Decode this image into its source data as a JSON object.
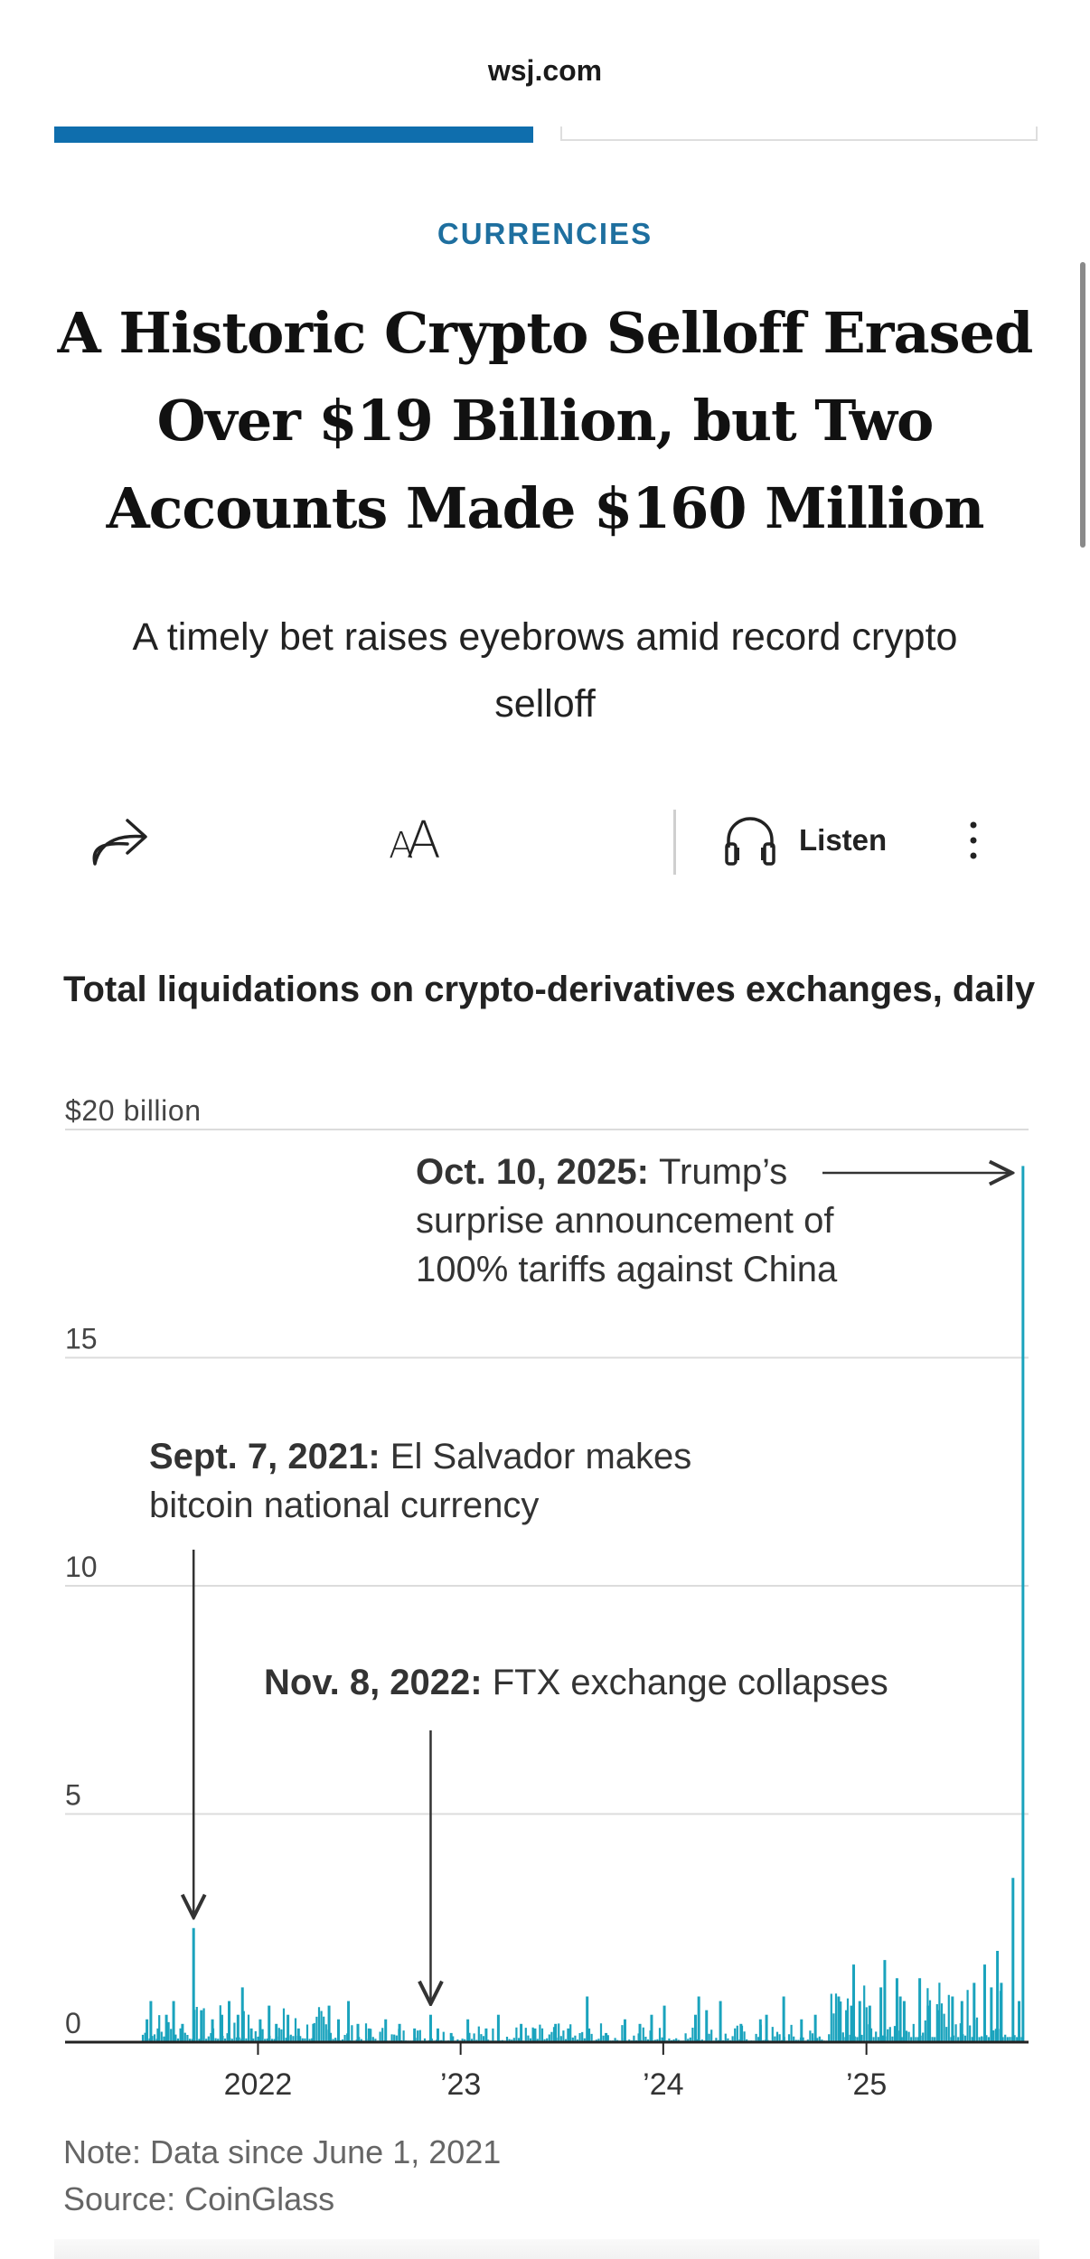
{
  "browser": {
    "url": "wsj.com"
  },
  "reading_progress": 0.5,
  "article": {
    "section": "CURRENCIES",
    "headline": "A Historic Crypto Selloff Erased Over $19 Billion, but Two Accounts Made $160 Million",
    "dek": "A timely bet raises eyebrows amid record crypto selloff"
  },
  "toolbar": {
    "share_icon": "share-arrow-icon",
    "text_size_icon": "text-size-icon",
    "listen_icon": "headphones-icon",
    "listen_label": "Listen",
    "more_icon": "more-vertical-icon"
  },
  "colors": {
    "accent": "#0f6ead",
    "section": "#1e6f9f",
    "series": "#1aa3bd"
  },
  "chart_data": {
    "type": "bar",
    "title": "Total liquidations on crypto-derivatives exchanges, daily",
    "ylabel": "",
    "ylim": [
      0,
      20
    ],
    "y_ticks": [
      {
        "value": 20,
        "label": "$20 billion"
      },
      {
        "value": 15,
        "label": "15"
      },
      {
        "value": 10,
        "label": "10"
      },
      {
        "value": 5,
        "label": "5"
      },
      {
        "value": 0,
        "label": "0"
      }
    ],
    "x_ticks": [
      {
        "date": "2022-01-01",
        "label": "2022"
      },
      {
        "date": "2023-01-01",
        "label": "’23"
      },
      {
        "date": "2024-01-01",
        "label": "’24"
      },
      {
        "date": "2025-01-01",
        "label": "’25"
      }
    ],
    "x_range": [
      "2021-06-01",
      "2025-10-20"
    ],
    "grid": true,
    "series": [
      {
        "points": [
          [
            "2021-06-15",
            0.5
          ],
          [
            "2021-06-22",
            0.9
          ],
          [
            "2021-07-05",
            0.3
          ],
          [
            "2021-07-20",
            0.6
          ],
          [
            "2021-08-02",
            0.9
          ],
          [
            "2021-08-18",
            0.4
          ],
          [
            "2021-09-07",
            2.5
          ],
          [
            "2021-09-21",
            0.7
          ],
          [
            "2021-10-11",
            0.5
          ],
          [
            "2021-10-28",
            0.6
          ],
          [
            "2021-11-10",
            0.9
          ],
          [
            "2021-11-26",
            0.6
          ],
          [
            "2021-12-04",
            1.2
          ],
          [
            "2021-12-20",
            0.3
          ],
          [
            "2022-01-05",
            0.5
          ],
          [
            "2022-01-21",
            0.8
          ],
          [
            "2022-02-03",
            0.4
          ],
          [
            "2022-02-24",
            0.6
          ],
          [
            "2022-03-15",
            0.3
          ],
          [
            "2022-04-11",
            0.4
          ],
          [
            "2022-05-09",
            0.8
          ],
          [
            "2022-05-26",
            0.5
          ],
          [
            "2022-06-13",
            0.9
          ],
          [
            "2022-06-30",
            0.4
          ],
          [
            "2022-07-20",
            0.3
          ],
          [
            "2022-08-19",
            0.5
          ],
          [
            "2022-09-13",
            0.4
          ],
          [
            "2022-10-10",
            0.3
          ],
          [
            "2022-11-08",
            0.6
          ],
          [
            "2022-11-21",
            0.3
          ],
          [
            "2022-12-15",
            0.2
          ],
          [
            "2023-01-14",
            0.5
          ],
          [
            "2023-02-16",
            0.3
          ],
          [
            "2023-03-10",
            0.6
          ],
          [
            "2023-04-20",
            0.4
          ],
          [
            "2023-05-15",
            0.3
          ],
          [
            "2023-06-21",
            0.4
          ],
          [
            "2023-07-14",
            0.3
          ],
          [
            "2023-08-17",
            1.0
          ],
          [
            "2023-09-20",
            0.2
          ],
          [
            "2023-10-24",
            0.5
          ],
          [
            "2023-11-20",
            0.4
          ],
          [
            "2023-12-11",
            0.6
          ],
          [
            "2024-01-03",
            0.8
          ],
          [
            "2024-02-28",
            0.6
          ],
          [
            "2024-03-05",
            1.0
          ],
          [
            "2024-03-19",
            0.7
          ],
          [
            "2024-04-13",
            0.9
          ],
          [
            "2024-05-20",
            0.4
          ],
          [
            "2024-06-24",
            0.5
          ],
          [
            "2024-07-05",
            0.6
          ],
          [
            "2024-08-05",
            1.0
          ],
          [
            "2024-09-06",
            0.5
          ],
          [
            "2024-10-01",
            0.6
          ],
          [
            "2024-11-12",
            1.0
          ],
          [
            "2024-11-26",
            0.7
          ],
          [
            "2024-12-05",
            0.8
          ],
          [
            "2024-12-09",
            1.7
          ],
          [
            "2024-12-20",
            0.9
          ],
          [
            "2025-01-07",
            0.8
          ],
          [
            "2025-01-27",
            1.2
          ],
          [
            "2025-02-03",
            1.8
          ],
          [
            "2025-02-25",
            1.4
          ],
          [
            "2025-03-03",
            1.0
          ],
          [
            "2025-03-10",
            0.9
          ],
          [
            "2025-04-07",
            1.4
          ],
          [
            "2025-04-22",
            0.8
          ],
          [
            "2025-05-12",
            0.7
          ],
          [
            "2025-06-05",
            1.0
          ],
          [
            "2025-06-22",
            0.9
          ],
          [
            "2025-07-14",
            1.3
          ],
          [
            "2025-08-02",
            1.7
          ],
          [
            "2025-08-14",
            1.2
          ],
          [
            "2025-08-25",
            2.0
          ],
          [
            "2025-09-01",
            1.3
          ],
          [
            "2025-09-22",
            3.6
          ],
          [
            "2025-10-03",
            0.9
          ],
          [
            "2025-10-10",
            19.2
          ]
        ]
      }
    ],
    "annotations": [
      {
        "date_label": "Oct. 10, 2025:",
        "text_lines": [
          "Trump’s",
          "surprise announcement of",
          "100% tariffs against China"
        ]
      },
      {
        "date_label": "Sept. 7, 2021:",
        "text_lines": [
          "El Salvador makes",
          "bitcoin national currency"
        ]
      },
      {
        "date_label": "Nov. 8, 2022:",
        "text_lines": [
          "FTX exchange collapses"
        ]
      }
    ],
    "note": "Note: Data since June 1, 2021",
    "source": "Source: CoinGlass"
  }
}
